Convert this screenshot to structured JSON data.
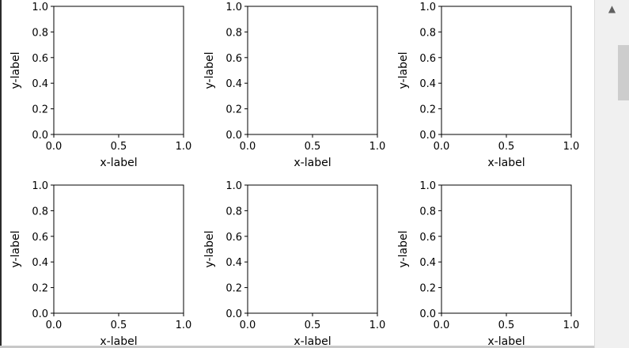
{
  "chart_data": [
    {
      "type": "line",
      "xlabel": "x-label",
      "ylabel": "y-label",
      "xlim": [
        0.0,
        1.0
      ],
      "ylim": [
        0.0,
        1.0
      ],
      "xticks": [
        "0.0",
        "0.5",
        "1.0"
      ],
      "yticks": [
        "0.0",
        "0.2",
        "0.4",
        "0.6",
        "0.8",
        "1.0"
      ],
      "series": []
    },
    {
      "type": "line",
      "xlabel": "x-label",
      "ylabel": "y-label",
      "xlim": [
        0.0,
        1.0
      ],
      "ylim": [
        0.0,
        1.0
      ],
      "xticks": [
        "0.0",
        "0.5",
        "1.0"
      ],
      "yticks": [
        "0.0",
        "0.2",
        "0.4",
        "0.6",
        "0.8",
        "1.0"
      ],
      "series": []
    },
    {
      "type": "line",
      "xlabel": "x-label",
      "ylabel": "y-label",
      "xlim": [
        0.0,
        1.0
      ],
      "ylim": [
        0.0,
        1.0
      ],
      "xticks": [
        "0.0",
        "0.5",
        "1.0"
      ],
      "yticks": [
        "0.0",
        "0.2",
        "0.4",
        "0.6",
        "0.8",
        "1.0"
      ],
      "series": []
    },
    {
      "type": "line",
      "xlabel": "x-label",
      "ylabel": "y-label",
      "xlim": [
        0.0,
        1.0
      ],
      "ylim": [
        0.0,
        1.0
      ],
      "xticks": [
        "0.0",
        "0.5",
        "1.0"
      ],
      "yticks": [
        "0.0",
        "0.2",
        "0.4",
        "0.6",
        "0.8",
        "1.0"
      ],
      "series": []
    },
    {
      "type": "line",
      "xlabel": "x-label",
      "ylabel": "y-label",
      "xlim": [
        0.0,
        1.0
      ],
      "ylim": [
        0.0,
        1.0
      ],
      "xticks": [
        "0.0",
        "0.5",
        "1.0"
      ],
      "yticks": [
        "0.0",
        "0.2",
        "0.4",
        "0.6",
        "0.8",
        "1.0"
      ],
      "series": []
    },
    {
      "type": "line",
      "xlabel": "x-label",
      "ylabel": "y-label",
      "xlim": [
        0.0,
        1.0
      ],
      "ylim": [
        0.0,
        1.0
      ],
      "xticks": [
        "0.0",
        "0.5",
        "1.0"
      ],
      "yticks": [
        "0.0",
        "0.2",
        "0.4",
        "0.6",
        "0.8",
        "1.0"
      ],
      "series": []
    }
  ],
  "scrollbar": {
    "up_icon": "up-arrow-icon"
  }
}
